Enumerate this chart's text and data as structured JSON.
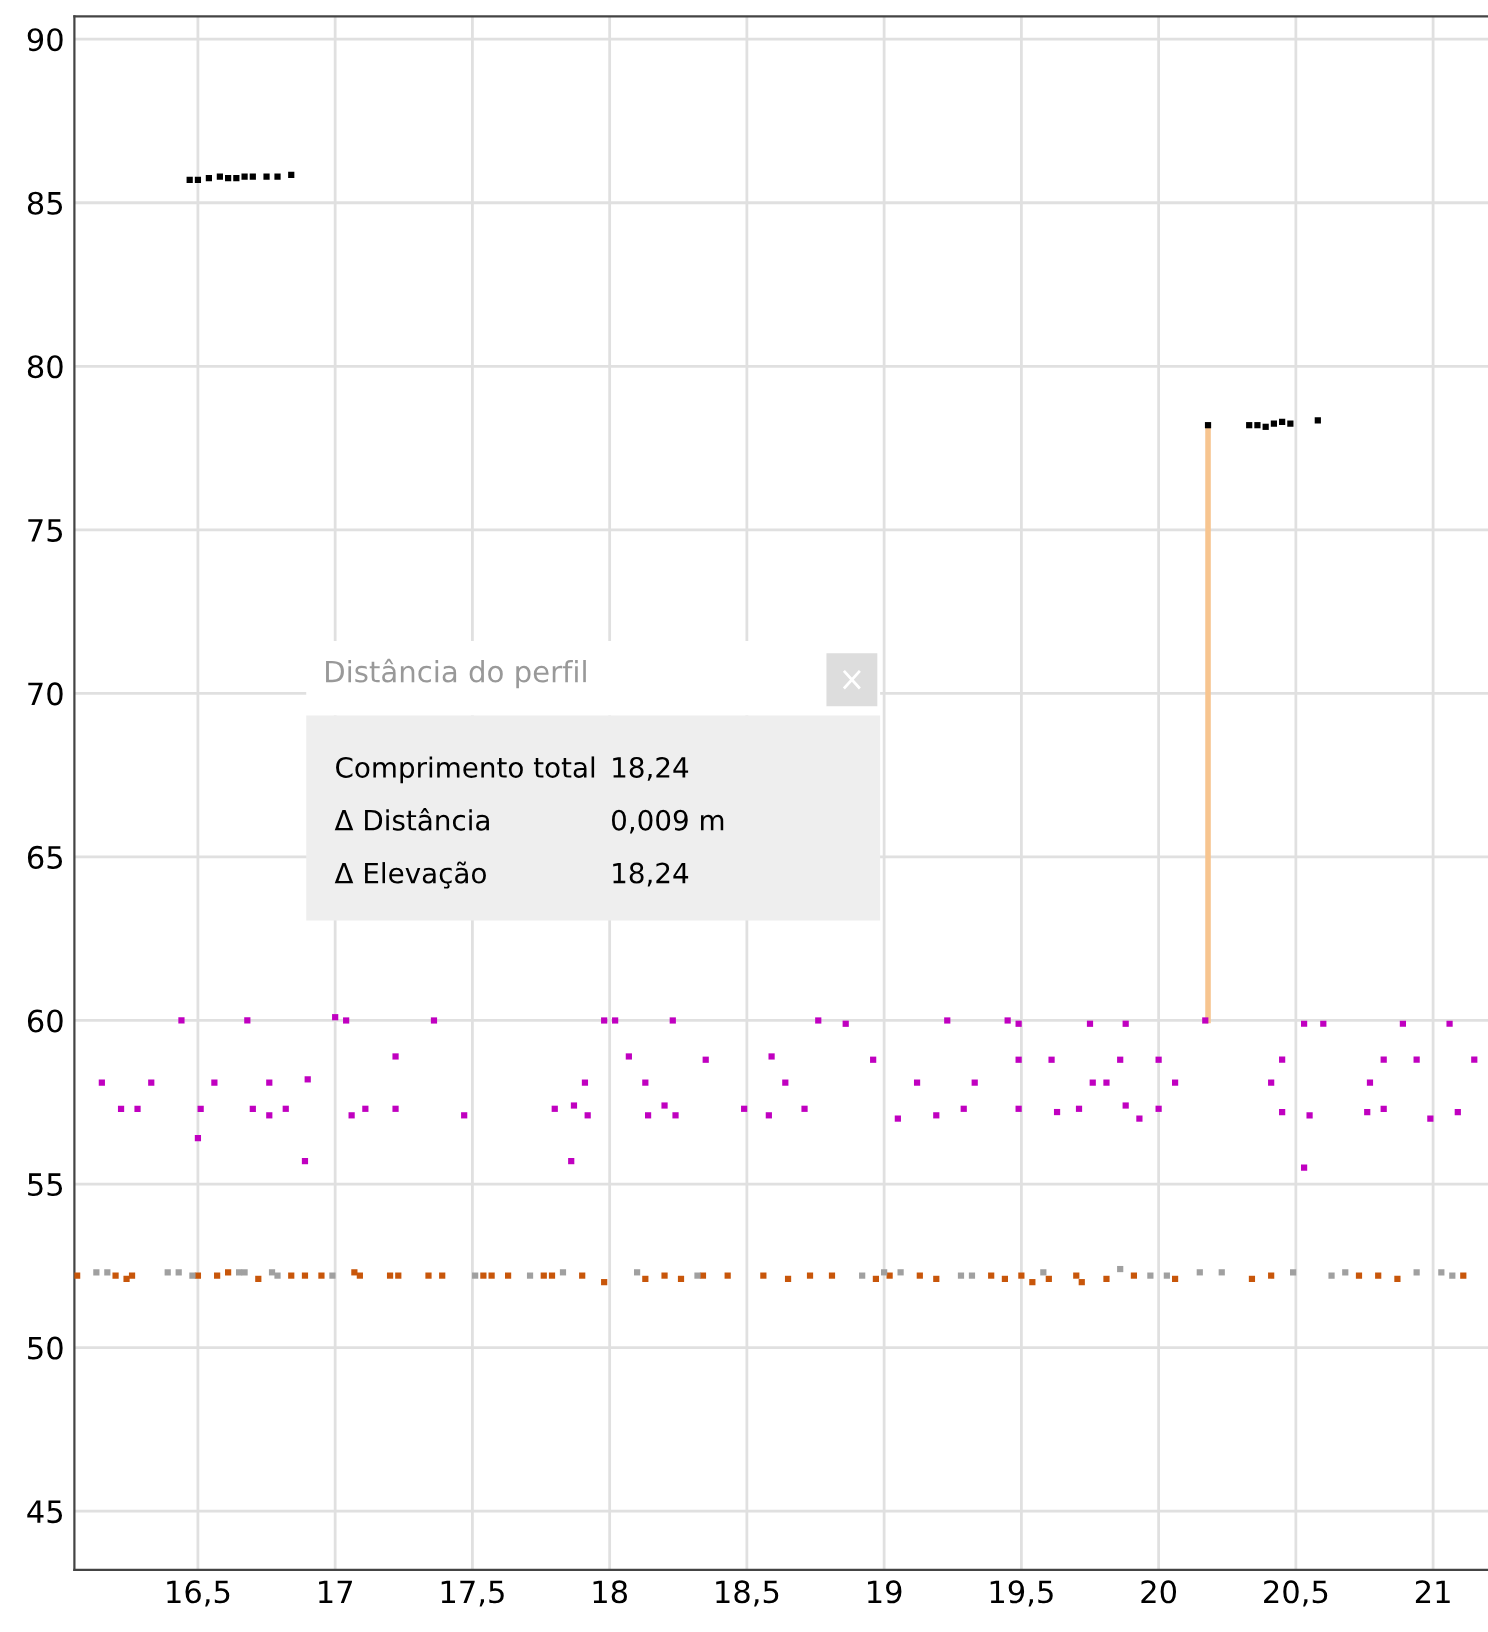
{
  "chart_data": {
    "type": "scatter",
    "xlim": [
      16.05,
      21.2
    ],
    "ylim": [
      43.2,
      90.7
    ],
    "xticks": [
      {
        "value": 16.5,
        "label": "16,5"
      },
      17,
      {
        "value": 17.5,
        "label": "17,5"
      },
      18,
      {
        "value": 18.5,
        "label": "18,5"
      },
      19,
      {
        "value": 19.5,
        "label": "19,5"
      },
      20,
      {
        "value": 20.5,
        "label": "20,5"
      },
      21
    ],
    "yticks": [
      45,
      50,
      55,
      60,
      65,
      70,
      75,
      80,
      85,
      90
    ],
    "grid": true,
    "series": [
      {
        "marker": "square",
        "color": "#000000",
        "x": [
          16.47,
          16.5,
          16.54,
          16.58,
          16.61,
          16.64,
          16.67,
          16.7,
          16.75,
          16.79,
          16.84,
          20.18,
          20.33,
          20.36,
          20.39,
          20.42,
          20.45,
          20.48,
          20.58
        ],
        "values": [
          85.7,
          85.7,
          85.75,
          85.8,
          85.75,
          85.75,
          85.8,
          85.8,
          85.8,
          85.8,
          85.85,
          78.2,
          78.2,
          78.2,
          78.15,
          78.25,
          78.3,
          78.25,
          78.35
        ]
      },
      {
        "marker": "square",
        "color": "#c000c0",
        "x": [
          16.15,
          16.22,
          16.28,
          16.33,
          16.44,
          16.5,
          16.51,
          16.56,
          16.68,
          16.7,
          16.76,
          16.76,
          16.82,
          16.89,
          16.9,
          17.0,
          17.04,
          17.06,
          17.11,
          17.22,
          17.22,
          17.36,
          17.47,
          17.8,
          17.86,
          17.87,
          17.91,
          17.92,
          17.98,
          18.02,
          18.07,
          18.13,
          18.14,
          18.2,
          18.24,
          18.23,
          18.35,
          18.49,
          18.59,
          18.58,
          18.64,
          18.71,
          18.76,
          18.86,
          18.96,
          19.05,
          19.12,
          19.19,
          19.23,
          19.29,
          19.33,
          19.45,
          19.49,
          19.49,
          19.49,
          19.61,
          19.63,
          19.71,
          19.75,
          19.76,
          19.81,
          19.86,
          19.88,
          19.88,
          19.93,
          20.0,
          20.0,
          20.06,
          20.17,
          20.41,
          20.45,
          20.45,
          20.53,
          20.53,
          20.55,
          20.6,
          20.76,
          20.77,
          20.82,
          20.82,
          20.89,
          20.94,
          20.99,
          21.06,
          21.09,
          21.15
        ],
        "values": [
          58.1,
          57.3,
          57.3,
          58.1,
          60,
          56.4,
          57.3,
          58.1,
          60,
          57.3,
          58.1,
          57.1,
          57.3,
          55.7,
          58.2,
          60.1,
          60,
          57.1,
          57.3,
          58.9,
          57.3,
          60,
          57.1,
          57.3,
          55.7,
          57.4,
          58.1,
          57.1,
          60,
          60,
          58.9,
          58.1,
          57.1,
          57.4,
          57.1,
          60,
          58.8,
          57.3,
          58.9,
          57.1,
          58.1,
          57.3,
          60,
          59.9,
          58.8,
          57,
          58.1,
          57.1,
          60,
          57.3,
          58.1,
          60,
          59.9,
          58.8,
          57.3,
          58.8,
          57.2,
          57.3,
          59.9,
          58.1,
          58.1,
          58.8,
          59.9,
          57.4,
          57,
          58.8,
          57.3,
          58.1,
          60,
          58.1,
          58.8,
          57.2,
          59.9,
          55.5,
          57.1,
          59.9,
          57.2,
          58.1,
          58.8,
          57.3,
          59.9,
          58.8,
          57,
          59.9,
          57.2,
          58.8
        ]
      },
      {
        "marker": "square",
        "color": "#c8560a",
        "x": [
          16.06,
          16.2,
          16.24,
          16.26,
          16.5,
          16.57,
          16.61,
          16.72,
          16.84,
          16.89,
          16.95,
          17.07,
          17.09,
          17.2,
          17.23,
          17.34,
          17.39,
          17.54,
          17.57,
          17.63,
          17.76,
          17.79,
          17.9,
          17.98,
          18.13,
          18.2,
          18.26,
          18.34,
          18.43,
          18.56,
          18.65,
          18.73,
          18.81,
          18.97,
          19.02,
          19.13,
          19.19,
          19.39,
          19.44,
          19.5,
          19.54,
          19.6,
          19.7,
          19.72,
          19.81,
          19.91,
          20.06,
          20.34,
          20.41,
          20.73,
          20.8,
          20.87,
          21.11
        ],
        "values": [
          52.2,
          52.2,
          52.1,
          52.2,
          52.2,
          52.2,
          52.3,
          52.1,
          52.2,
          52.2,
          52.2,
          52.3,
          52.2,
          52.2,
          52.2,
          52.2,
          52.2,
          52.2,
          52.2,
          52.2,
          52.2,
          52.2,
          52.2,
          52.0,
          52.1,
          52.2,
          52.1,
          52.2,
          52.2,
          52.2,
          52.1,
          52.2,
          52.2,
          52.1,
          52.2,
          52.2,
          52.1,
          52.2,
          52.1,
          52.2,
          52.0,
          52.1,
          52.2,
          52.0,
          52.1,
          52.2,
          52.1,
          52.1,
          52.2,
          52.2,
          52.2,
          52.1,
          52.2
        ]
      },
      {
        "marker": "square",
        "color": "#a0a0a0",
        "x": [
          16.13,
          16.17,
          16.39,
          16.43,
          16.48,
          16.65,
          16.67,
          16.77,
          16.79,
          16.99,
          17.51,
          17.71,
          17.83,
          18.1,
          18.32,
          18.92,
          19.0,
          19.06,
          19.28,
          19.32,
          19.58,
          19.86,
          19.97,
          20.03,
          20.15,
          20.23,
          20.49,
          20.63,
          20.68,
          20.94,
          21.03,
          21.07
        ],
        "values": [
          52.3,
          52.3,
          52.3,
          52.3,
          52.2,
          52.3,
          52.3,
          52.3,
          52.2,
          52.2,
          52.2,
          52.2,
          52.3,
          52.3,
          52.2,
          52.2,
          52.3,
          52.3,
          52.2,
          52.2,
          52.3,
          52.4,
          52.2,
          52.2,
          52.3,
          52.3,
          52.3,
          52.2,
          52.3,
          52.3,
          52.3,
          52.2
        ]
      },
      {
        "type": "line",
        "marker": "none",
        "color": "#f7c590",
        "x": [
          20.18,
          20.18
        ],
        "values": [
          60,
          78.2
        ]
      }
    ],
    "annotations": [
      "Distância do perfil",
      "Comprimento total",
      "18,24",
      "Δ Distância",
      "0,009 m",
      "Δ Elevação",
      "18,24"
    ]
  }
}
